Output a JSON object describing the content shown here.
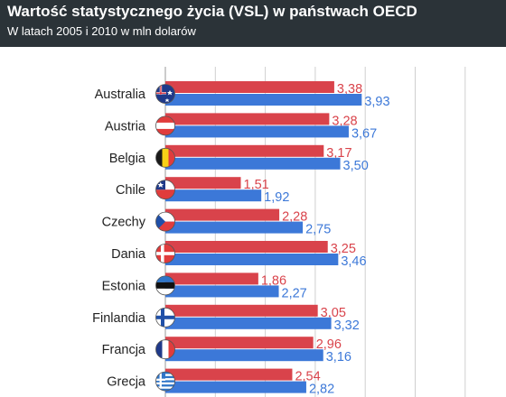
{
  "chart_data": {
    "type": "bar",
    "orientation": "horizontal",
    "title": "Wartość statystycznego życia (VSL) w państwach OECD",
    "subtitle": "W latach 2005 i 2010 w mln dolarów",
    "categories": [
      "Australia",
      "Austria",
      "Belgia",
      "Chile",
      "Czechy",
      "Dania",
      "Estonia",
      "Finlandia",
      "Francja",
      "Grecja"
    ],
    "series": [
      {
        "values": [
          3.38,
          3.28,
          3.17,
          1.51,
          2.28,
          3.25,
          1.86,
          3.05,
          2.96,
          2.54
        ],
        "color": "#d9434b"
      },
      {
        "values": [
          3.93,
          3.67,
          3.5,
          1.92,
          2.75,
          3.46,
          2.27,
          3.32,
          3.16,
          2.82
        ],
        "color": "#3c78d8"
      }
    ],
    "value_labels": [
      [
        "3,38",
        "3,28",
        "3,17",
        "1,51",
        "2,28",
        "3,25",
        "1,86",
        "3,05",
        "2,96",
        "2,54"
      ],
      [
        "3,93",
        "3,67",
        "3,50",
        "1,92",
        "2,75",
        "3,46",
        "2,27",
        "3,32",
        "3,16",
        "2,82"
      ]
    ],
    "xlim": [
      0,
      6
    ],
    "grid": true,
    "flags": [
      "australia-flag-icon",
      "austria-flag-icon",
      "belgium-flag-icon",
      "chile-flag-icon",
      "czechia-flag-icon",
      "denmark-flag-icon",
      "estonia-flag-icon",
      "finland-flag-icon",
      "france-flag-icon",
      "greece-flag-icon"
    ]
  }
}
